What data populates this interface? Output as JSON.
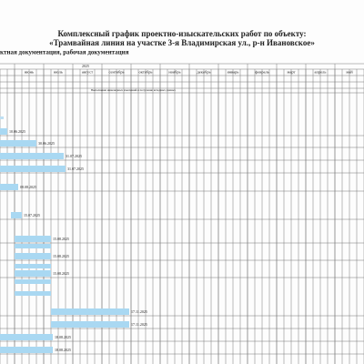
{
  "header": {
    "title": "Комплексный график проектно-изыскательских работ по объекту:",
    "object": "«Трамвайная линия на участке 3-я Владимирская ул., р-н Ивановское»",
    "stage": "ктная документация, рабочая документация"
  },
  "timeline": {
    "year": "2025",
    "months": [
      "июнь",
      "июль",
      "август",
      "сентябрь",
      "октябрь",
      "ноябрь",
      "декабрь",
      "январь",
      "февраль",
      "март",
      "апрель",
      "май"
    ],
    "note": "Выполнение инженерных изысканий и получение исходных данных"
  },
  "tasks": [
    {
      "end": "10.06.2025"
    },
    {
      "end": "30.06.2025"
    },
    {
      "end": "31.07.2025"
    },
    {
      "end": "31.07.2025"
    },
    {
      "end": "08.08.2025"
    },
    {
      "end": "15.07.2025"
    },
    {
      "end": "15.08.2025"
    },
    {
      "end": "15.08.2025"
    },
    {
      "end": "15.08.2025"
    },
    {
      "end": "17.11.2025"
    },
    {
      "end": "17.11.2025"
    },
    {
      "end": "18.08.2025"
    },
    {
      "end": "18.08.2025"
    }
  ]
}
